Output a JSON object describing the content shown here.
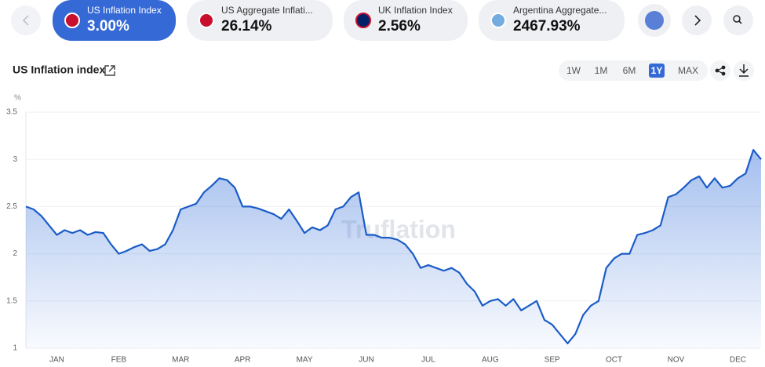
{
  "tickers": [
    {
      "label": "US Inflation Index",
      "value": "3.00%"
    },
    {
      "label": "US Aggregate Inflati...",
      "value": "26.14%"
    },
    {
      "label": "UK Inflation Index",
      "value": "2.56%"
    },
    {
      "label": "Argentina Aggregate...",
      "value": "2467.93%"
    }
  ],
  "ranges": [
    "1W",
    "1M",
    "6M",
    "1Y",
    "MAX"
  ],
  "active_range": "1Y",
  "chart_data": {
    "type": "line",
    "title": "US Inflation index",
    "y_label": "%",
    "watermark": "Truflation",
    "categories": [
      null,
      null,
      null,
      null,
      "JAN",
      null,
      null,
      null,
      null,
      null,
      null,
      null,
      "FEB",
      null,
      null,
      null,
      null,
      null,
      null,
      null,
      "MAR",
      null,
      null,
      null,
      null,
      null,
      null,
      null,
      "APR",
      null,
      null,
      null,
      null,
      null,
      null,
      null,
      "MAY",
      null,
      null,
      null,
      null,
      null,
      null,
      null,
      "JUN",
      null,
      null,
      null,
      null,
      null,
      null,
      null,
      "JUL",
      null,
      null,
      null,
      null,
      null,
      null,
      null,
      "AUG",
      null,
      null,
      null,
      null,
      null,
      null,
      null,
      "SEP",
      null,
      null,
      null,
      null,
      null,
      null,
      null,
      "OCT",
      null,
      null,
      null,
      null,
      null,
      null,
      null,
      "NOV",
      null,
      null,
      null,
      null,
      null,
      null,
      null,
      "DEC",
      null,
      null,
      null
    ],
    "series": [
      {
        "name": "US Inflation index",
        "color": "#1a5cc8",
        "values": [
          2.5,
          2.47,
          2.4,
          2.3,
          2.2,
          2.25,
          2.22,
          2.25,
          2.2,
          2.23,
          2.22,
          2.1,
          2.0,
          2.03,
          2.07,
          2.1,
          2.03,
          2.05,
          2.1,
          2.25,
          2.47,
          2.5,
          2.53,
          2.65,
          2.72,
          2.8,
          2.78,
          2.7,
          2.5,
          2.5,
          2.48,
          2.45,
          2.42,
          2.37,
          2.47,
          2.35,
          2.22,
          2.28,
          2.25,
          2.3,
          2.47,
          2.5,
          2.6,
          2.65,
          2.2,
          2.2,
          2.17,
          2.17,
          2.15,
          2.1,
          2.0,
          1.85,
          1.88,
          1.85,
          1.82,
          1.85,
          1.8,
          1.68,
          1.6,
          1.45,
          1.5,
          1.52,
          1.45,
          1.52,
          1.4,
          1.45,
          1.5,
          1.3,
          1.25,
          1.15,
          1.05,
          1.15,
          1.35,
          1.45,
          1.5,
          1.85,
          1.95,
          2.0,
          2.0,
          2.2,
          2.22,
          2.25,
          2.3,
          2.6,
          2.63,
          2.7,
          2.78,
          2.82,
          2.7,
          2.8,
          2.7,
          2.72,
          2.8,
          2.85,
          3.1,
          3.0
        ]
      }
    ],
    "ylim": [
      1,
      3.5
    ],
    "yticks": [
      1,
      1.5,
      2,
      2.5,
      3,
      3.5
    ],
    "grid": true
  }
}
